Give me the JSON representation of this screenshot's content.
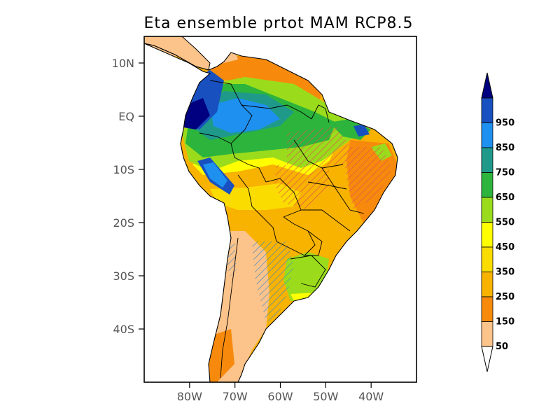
{
  "title": "Eta ensemble prtot MAM RCP8.5",
  "map": {
    "lat_ticks": [
      {
        "label": "10N",
        "lat": 10
      },
      {
        "label": "EQ",
        "lat": 0
      },
      {
        "label": "10S",
        "lat": -10
      },
      {
        "label": "20S",
        "lat": -20
      },
      {
        "label": "30S",
        "lat": -30
      },
      {
        "label": "40S",
        "lat": -40
      }
    ],
    "lon_ticks": [
      {
        "label": "80W",
        "lon": -80
      },
      {
        "label": "70W",
        "lon": -70
      },
      {
        "label": "60W",
        "lon": -60
      },
      {
        "label": "50W",
        "lon": -50
      },
      {
        "label": "40W",
        "lon": -40
      }
    ],
    "lon_range": [
      -90,
      -30
    ],
    "lat_range": [
      -50,
      15
    ]
  },
  "colorbar": {
    "levels": [
      "50",
      "150",
      "250",
      "350",
      "450",
      "550",
      "650",
      "750",
      "850",
      "950"
    ],
    "colors": {
      "below": "#ffffff",
      "c50": "#fcc38a",
      "c150": "#f78a0c",
      "c250": "#f8b200",
      "c350": "#fbdc00",
      "c450": "#ffff00",
      "c550": "#9adc1c",
      "c650": "#2cb43c",
      "c750": "#1f9a8a",
      "c850": "#1e90f0",
      "c950": "#1850c0",
      "above": "#000080"
    },
    "band_order": [
      "c50",
      "c150",
      "c250",
      "c350",
      "c450",
      "c550",
      "c650",
      "c750",
      "c850",
      "c950"
    ]
  },
  "hatch_colors": {
    "increase": "#e05050",
    "decrease": "#3a8ac8"
  }
}
